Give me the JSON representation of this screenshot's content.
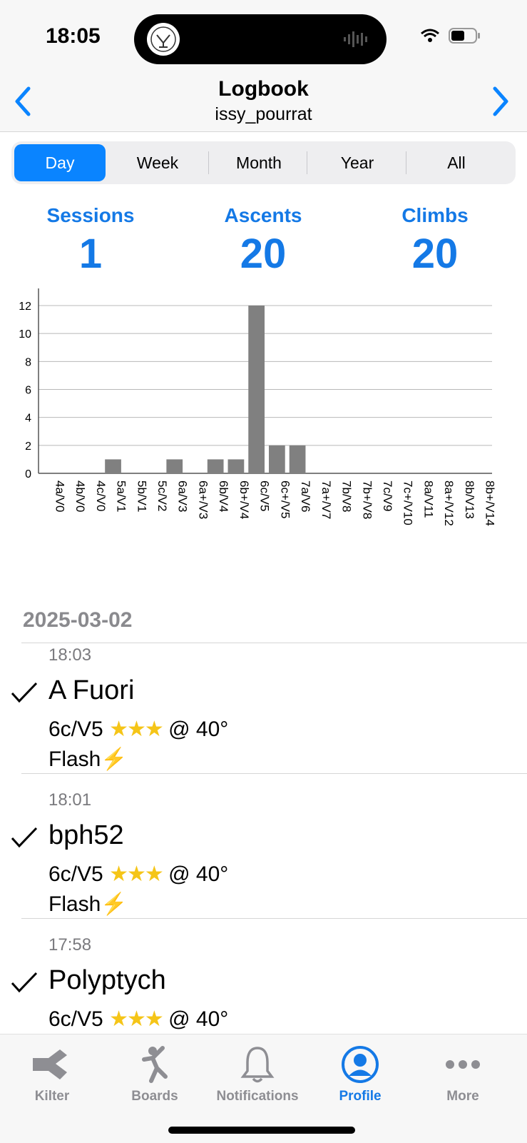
{
  "status_bar": {
    "time": "18:05"
  },
  "header": {
    "title": "Logbook",
    "subtitle": "issy_pourrat"
  },
  "segments": [
    "Day",
    "Week",
    "Month",
    "Year",
    "All"
  ],
  "active_segment": "Day",
  "stats": [
    {
      "label": "Sessions",
      "value": "1"
    },
    {
      "label": "Ascents",
      "value": "20"
    },
    {
      "label": "Climbs",
      "value": "20"
    }
  ],
  "chart_data": {
    "type": "bar",
    "categories": [
      "4a/V0",
      "4b/V0",
      "4c/V0",
      "5a/V1",
      "5b/V1",
      "5c/V2",
      "6a/V3",
      "6a+/V3",
      "6b/V4",
      "6b+/V4",
      "6c/V5",
      "6c+/V5",
      "7a/V6",
      "7a+/V7",
      "7b/V8",
      "7b+/V8",
      "7c/V9",
      "7c+/V10",
      "8a/V11",
      "8a+/V12",
      "8b/V13",
      "8b+/V14"
    ],
    "values": [
      0,
      0,
      0,
      1,
      0,
      0,
      1,
      0,
      1,
      1,
      12,
      2,
      2,
      0,
      0,
      0,
      0,
      0,
      0,
      0,
      0,
      0
    ],
    "yticks": [
      0,
      2,
      4,
      6,
      8,
      10,
      12
    ],
    "ylim": [
      0,
      12
    ],
    "grid": true,
    "bar_color": "#808080"
  },
  "log": {
    "date": "2025-03-02",
    "entries": [
      {
        "time": "18:03",
        "name": "A Fuori",
        "grade": "6c/V5",
        "stars": "★★★",
        "angle": "@ 40°",
        "result": "Flash",
        "bolt": "⚡"
      },
      {
        "time": "18:01",
        "name": "bph52",
        "grade": "6c/V5",
        "stars": "★★★",
        "angle": "@ 40°",
        "result": "Flash",
        "bolt": "⚡"
      },
      {
        "time": "17:58",
        "name": "Polyptych",
        "grade": "6c/V5",
        "stars": "★★★",
        "angle": "@ 40°",
        "result": "",
        "bolt": ""
      }
    ]
  },
  "tabs": [
    {
      "label": "Kilter",
      "icon": "kilter-logo-icon"
    },
    {
      "label": "Boards",
      "icon": "climber-icon"
    },
    {
      "label": "Notifications",
      "icon": "bell-icon"
    },
    {
      "label": "Profile",
      "icon": "profile-icon"
    },
    {
      "label": "More",
      "icon": "ellipsis-icon"
    }
  ],
  "active_tab": "Profile",
  "colors": {
    "accent": "#1479e6",
    "segment_active": "#0a84ff",
    "star": "#f5c518",
    "bar": "#808080"
  }
}
